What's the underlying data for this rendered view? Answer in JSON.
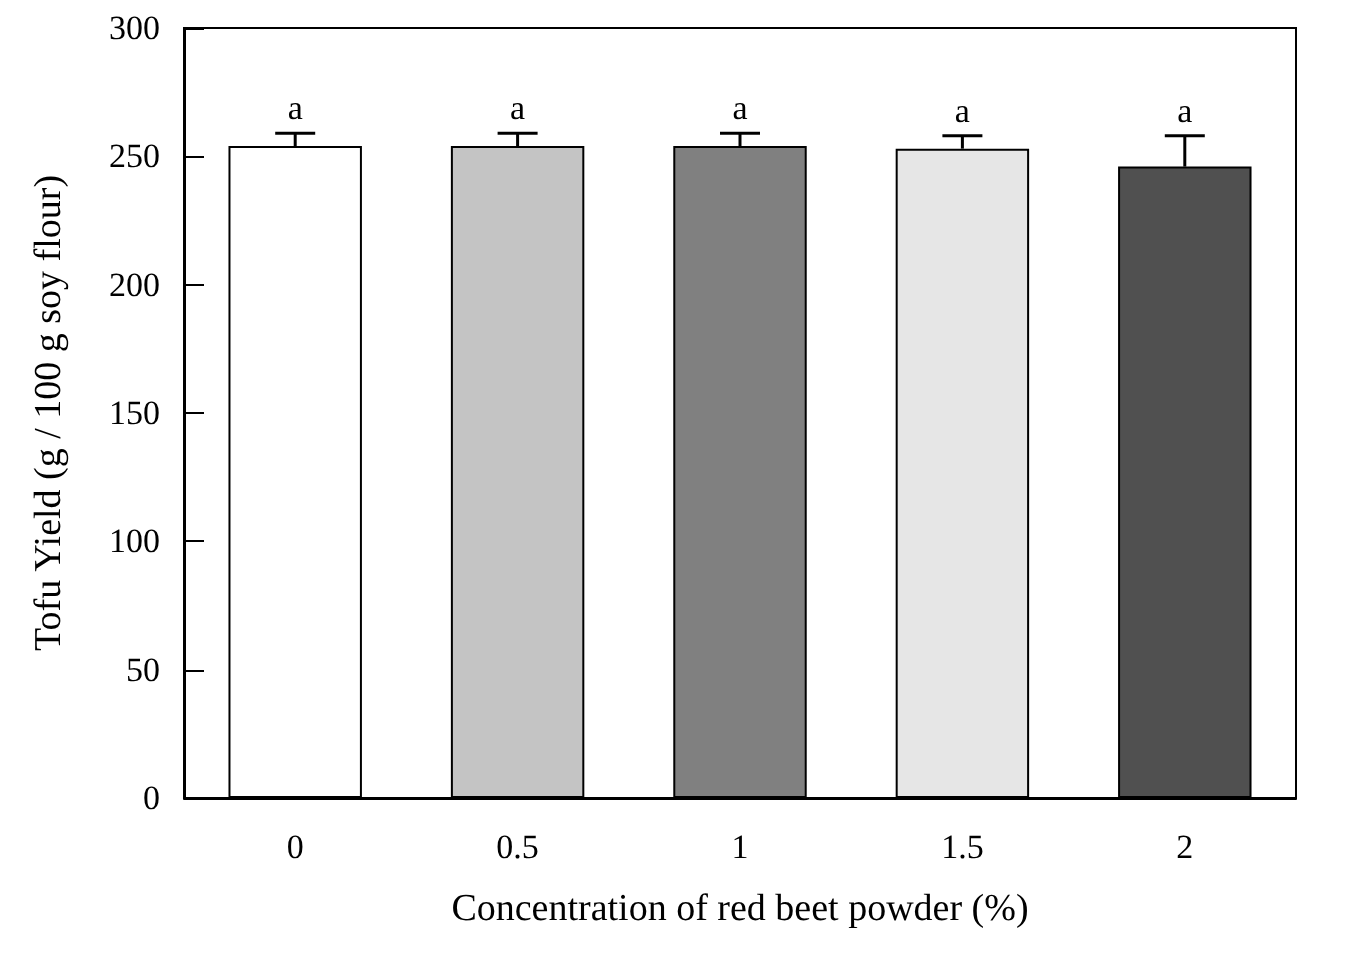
{
  "chart_data": {
    "type": "bar",
    "xlabel": "Concentration of red beet powder (%)",
    "ylabel": "Tofu Yield (g / 100 g soy flour)",
    "categories": [
      "0",
      "0.5",
      "1",
      "1.5",
      "2"
    ],
    "values": [
      254,
      254,
      254,
      253,
      246
    ],
    "errors": [
      5,
      5,
      5,
      5,
      12
    ],
    "colors": [
      "#ffffff",
      "#c4c4c4",
      "#808080",
      "#e6e6e6",
      "#505050"
    ],
    "ylim": [
      0,
      300
    ],
    "yticks": [
      0,
      50,
      100,
      150,
      200,
      250,
      300
    ],
    "grid": false,
    "annotations": [
      "a",
      "a",
      "a",
      "a",
      "a"
    ]
  }
}
